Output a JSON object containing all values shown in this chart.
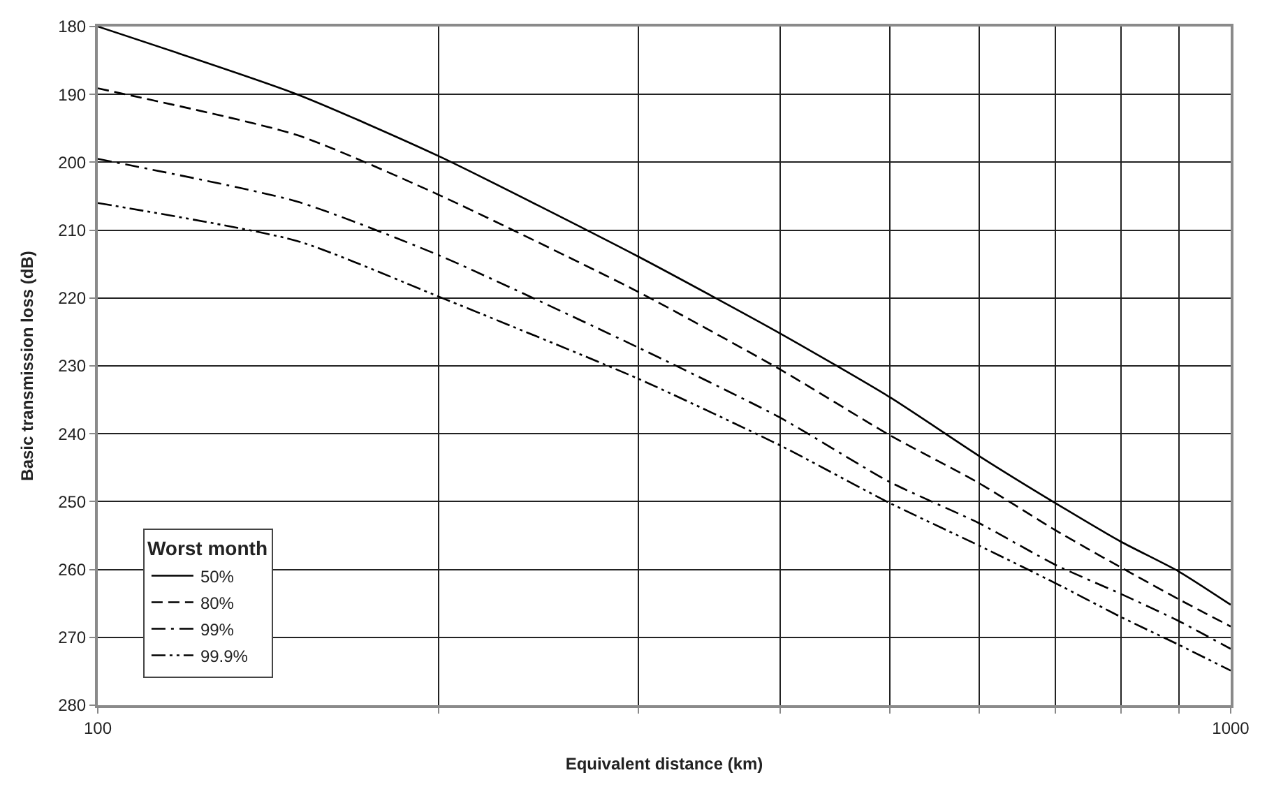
{
  "chart_data": {
    "type": "line",
    "xlabel": "Equivalent distance (km)",
    "ylabel": "Basic transmission loss (dB)",
    "legend_title": "Worst month",
    "x": [
      100,
      150,
      200,
      300,
      400,
      500,
      600,
      700,
      800,
      900,
      1000
    ],
    "series": [
      {
        "name": "50%",
        "color": "#000000",
        "line_style": "solid",
        "values": [
          180,
          190,
          199.1,
          213.9,
          225.2,
          234.6,
          243.3,
          250.2,
          255.9,
          260.3,
          265.2
        ]
      },
      {
        "name": "80%",
        "color": "#000000",
        "line_style": "dashed",
        "values": [
          189.1,
          196.0,
          204.8,
          219.1,
          230.5,
          240.2,
          247.3,
          254.2,
          259.7,
          264.4,
          268.4
        ]
      },
      {
        "name": "99%",
        "color": "#000000",
        "line_style": "dashdot",
        "values": [
          199.5,
          205.8,
          213.7,
          227.3,
          237.6,
          247.1,
          253.2,
          259.3,
          263.6,
          267.6,
          271.7
        ]
      },
      {
        "name": "99.9%",
        "color": "#000000",
        "line_style": "dashdotdot",
        "values": [
          206,
          211.6,
          219.8,
          231.9,
          241.7,
          250.2,
          256.5,
          262,
          267,
          271.1,
          274.9
        ]
      }
    ],
    "log": "x",
    "xlim": [
      100,
      1000
    ],
    "ylim": [
      280,
      180
    ],
    "xticks": [
      100,
      {
        "value": 200,
        "label": null
      },
      {
        "value": 300,
        "label": null
      },
      {
        "value": 400,
        "label": null
      },
      {
        "value": 500,
        "label": null
      },
      {
        "value": 600,
        "label": null
      },
      {
        "value": 700,
        "label": null
      },
      {
        "value": 800,
        "label": null
      },
      {
        "value": 900,
        "label": null
      },
      1000
    ],
    "yticks": [
      180,
      190,
      200,
      210,
      220,
      230,
      240,
      250,
      260,
      270,
      280
    ],
    "grid": true,
    "legend": "bottom left",
    "marker": "none"
  }
}
